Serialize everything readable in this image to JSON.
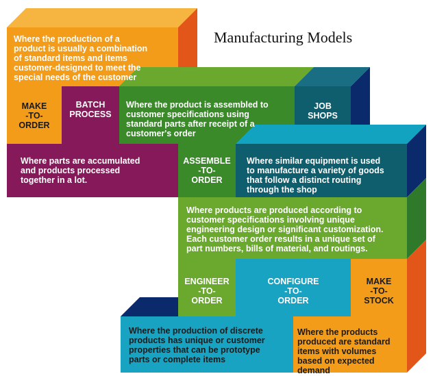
{
  "title": "Manufacturing Models",
  "colors": {
    "orange": "#f39c1a",
    "orange_side": "#e2561a",
    "purple": "#86195a",
    "purple_top": "#9b2e6c",
    "green": "#3a8a2a",
    "green_light": "#6aa82e",
    "teal": "#0f5e6d",
    "teal_top": "#12a3c0",
    "navy": "#0b2a6b",
    "cyan": "#19a3c2",
    "white": "#ffffff",
    "dark_text": "#1a1a1a"
  },
  "boxes": {
    "make_to_order_desc": "Where the production of a\nproduct is usually a combination\nof standard items and items\ncustomer-designed to meet the\nspecial needs of the customer",
    "make_to_order": "MAKE\n-TO-\nORDER",
    "batch_process": "BATCH\nPROCESS",
    "assemble_to_order_desc": "Where the product is assembled to\ncustomer specifications using\nstandard parts after receipt of a\ncustomer's order",
    "job_shops": "JOB\nSHOPS",
    "batch_process_desc": "Where parts are accumulated\nand products processed\ntogether in a lot.",
    "assemble_to_order": "ASSEMBLE\n-TO-\nORDER",
    "job_shops_desc": "Where similar equipment is used\nto manufacture a variety of goods\nthat follow a distinct routing\nthrough the shop",
    "engineer_to_order_desc": "Where products are produced according to\ncustomer specifications involving unique\nengineering design or significant customization.\nEach customer order results in a unique set of\npart numbers, bills of material, and routings.",
    "engineer_to_order": "ENGINEER\n-TO-\nORDER",
    "configure_to_order": "CONFIGURE\n-TO-\nORDER",
    "make_to_stock": "MAKE\n-TO-\nSTOCK",
    "configure_to_order_desc": "Where the production of discrete\nproducts has unique or customer\nproperties that can be prototype\nparts or complete items",
    "make_to_stock_desc": "Where the products\nproduced are standard\nitems with volumes\nbased on expected\ndemand"
  }
}
